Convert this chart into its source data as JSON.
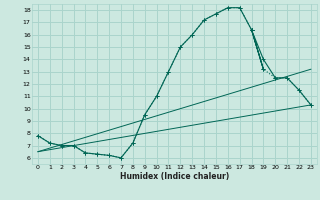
{
  "xlabel": "Humidex (Indice chaleur)",
  "bg_color": "#cce8e0",
  "grid_color": "#aad4cc",
  "line_color": "#006655",
  "xlim": [
    -0.5,
    23.5
  ],
  "ylim": [
    5.5,
    18.5
  ],
  "yticks": [
    6,
    7,
    8,
    9,
    10,
    11,
    12,
    13,
    14,
    15,
    16,
    17,
    18
  ],
  "xticks": [
    0,
    1,
    2,
    3,
    4,
    5,
    6,
    7,
    8,
    9,
    10,
    11,
    12,
    13,
    14,
    15,
    16,
    17,
    18,
    19,
    20,
    21,
    22,
    23
  ],
  "dotted_line": {
    "x": [
      0,
      1,
      2,
      3,
      4,
      5,
      6,
      7,
      8,
      9,
      10,
      11,
      12,
      13,
      14,
      15,
      16,
      17,
      18,
      19,
      20,
      21,
      22,
      23
    ],
    "y": [
      7.8,
      7.2,
      7.0,
      7.0,
      6.4,
      6.3,
      6.2,
      6.0,
      7.2,
      9.5,
      11.0,
      13.0,
      15.0,
      16.0,
      17.2,
      17.7,
      18.2,
      18.2,
      16.4,
      13.2,
      12.5,
      12.5,
      11.5,
      10.3
    ]
  },
  "solid_main": {
    "x": [
      0,
      1,
      2,
      3,
      4,
      5,
      6,
      7,
      8,
      9,
      10,
      11,
      12,
      13,
      14,
      15,
      16,
      17,
      18
    ],
    "y": [
      7.8,
      7.2,
      7.0,
      7.0,
      6.4,
      6.3,
      6.2,
      6.0,
      7.2,
      9.5,
      11.0,
      13.0,
      15.0,
      16.0,
      17.2,
      17.7,
      18.2,
      18.2,
      16.4
    ]
  },
  "zigzag": {
    "x": [
      18,
      19,
      18,
      19,
      20,
      21,
      22,
      23
    ],
    "y": [
      16.4,
      13.2,
      16.4,
      14.0,
      12.5,
      12.5,
      11.5,
      10.3
    ]
  },
  "line1": {
    "x": [
      0,
      23
    ],
    "y": [
      6.5,
      10.3
    ]
  },
  "line2": {
    "x": [
      0,
      23
    ],
    "y": [
      6.5,
      13.2
    ]
  }
}
